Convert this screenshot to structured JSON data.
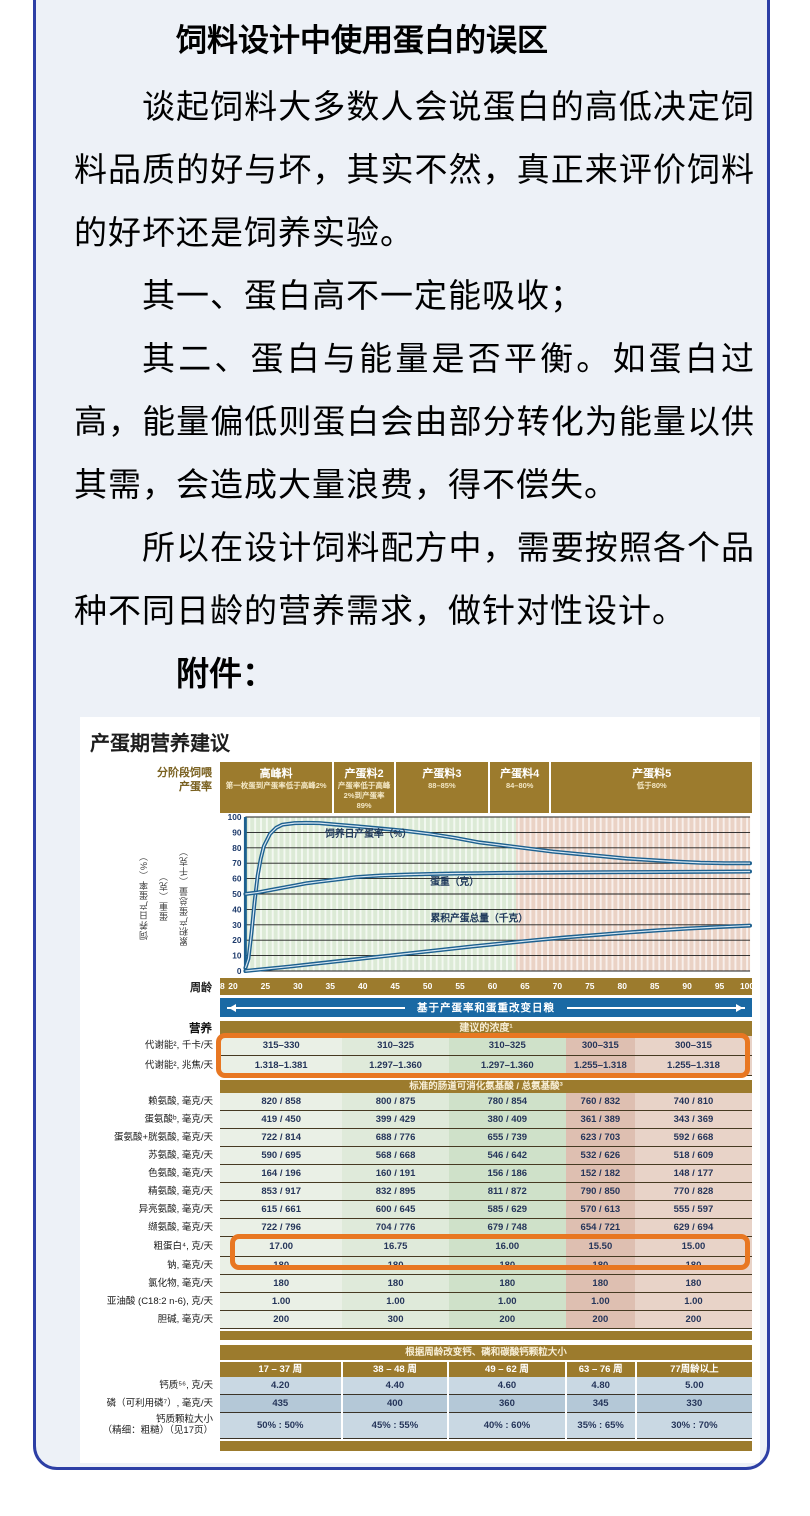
{
  "document": {
    "title": "饲料设计中使用蛋白的误区",
    "paragraphs": [
      "谈起饲料大多数人会说蛋白的高低决定饲料品质的好与坏，其实不然，真正来评价饲料的好坏还是饲养实验。",
      "其一、蛋白高不一定能吸收；",
      "其二、蛋白与能量是否平衡。如蛋白过高，能量偏低则蛋白会由部分转化为能量以供其需，会造成大量浪费，得不偿失。",
      "所以在设计饲料配方中，需要按照各个品种不同日龄的营养需求，做针对性设计。"
    ],
    "attachment_label": "附件："
  },
  "colors": {
    "card_bg": "#edf1f7",
    "card_border": "#2d3fa5",
    "brown": "#9c7b2d",
    "banner_blue": "#1a69a4",
    "curve_blue": "#1d608f",
    "highlight_orange": "#e87722",
    "green_zone": "#dcead6",
    "pink_zone": "#ead2c5"
  },
  "chart_data": {
    "type": "line",
    "title": "产蛋期营养建议",
    "phase_label_lines": [
      "分阶段饲喂",
      "产蛋率"
    ],
    "phases": [
      {
        "name": "高峰料",
        "range": "第一枚蛋到产蛋率低于高峰2%",
        "width_pct": 21.5
      },
      {
        "name": "产蛋料2",
        "range": "产蛋率低于高峰2%到产蛋率89%",
        "width_pct": 11
      },
      {
        "name": "产蛋料3",
        "range": "88–85%",
        "width_pct": 17.5
      },
      {
        "name": "产蛋料4",
        "range": "84–80%",
        "width_pct": 11
      },
      {
        "name": "产蛋料5",
        "range": "低于80%",
        "width_pct": 39
      }
    ],
    "y_axis_label_lines": [
      "饲养日产蛋率（%）",
      "蛋重（克）",
      "累积产蛋总量（千克）"
    ],
    "x_label": "周龄",
    "x_range": [
      18,
      100
    ],
    "x_ticks": [
      18,
      20,
      25,
      30,
      35,
      40,
      45,
      50,
      55,
      60,
      65,
      70,
      75,
      80,
      85,
      90,
      95,
      100
    ],
    "y_range": [
      0,
      100
    ],
    "y_ticks": [
      0,
      10,
      20,
      30,
      40,
      50,
      60,
      70,
      80,
      90,
      100
    ],
    "zone_split_week": 62,
    "grid": true,
    "banner": "基于产蛋率和蛋重改变日粮",
    "series": [
      {
        "name": "饲养日产蛋率（%）",
        "label_at": [
          38,
          87
        ],
        "points": [
          [
            18,
            2
          ],
          [
            18.5,
            8
          ],
          [
            19,
            25
          ],
          [
            19.5,
            45
          ],
          [
            20,
            62
          ],
          [
            20.5,
            73
          ],
          [
            21,
            81
          ],
          [
            22,
            89
          ],
          [
            23,
            93
          ],
          [
            24,
            95
          ],
          [
            26,
            96
          ],
          [
            28,
            96.2
          ],
          [
            30,
            96
          ],
          [
            33,
            95
          ],
          [
            36,
            94
          ],
          [
            40,
            92.5
          ],
          [
            44,
            91
          ],
          [
            48,
            89
          ],
          [
            52,
            86.5
          ],
          [
            56,
            83.5
          ],
          [
            60,
            81.5
          ],
          [
            64,
            79.5
          ],
          [
            68,
            77.5
          ],
          [
            72,
            76
          ],
          [
            76,
            74.5
          ],
          [
            80,
            73
          ],
          [
            84,
            72
          ],
          [
            88,
            71
          ],
          [
            92,
            70.3
          ],
          [
            96,
            70
          ],
          [
            100,
            70
          ]
        ]
      },
      {
        "name": "蛋重（克）",
        "label_at": [
          52,
          56
        ],
        "points": [
          [
            18,
            50
          ],
          [
            20,
            51
          ],
          [
            22,
            52.5
          ],
          [
            24,
            54
          ],
          [
            26,
            55.5
          ],
          [
            28,
            57
          ],
          [
            30,
            58
          ],
          [
            33,
            59.5
          ],
          [
            36,
            61
          ],
          [
            40,
            62
          ],
          [
            44,
            62.6
          ],
          [
            48,
            63
          ],
          [
            52,
            63.3
          ],
          [
            56,
            63.5
          ],
          [
            60,
            63.7
          ],
          [
            70,
            64
          ],
          [
            80,
            64.2
          ],
          [
            90,
            64.4
          ],
          [
            100,
            64.6
          ]
        ]
      },
      {
        "name": "累积产蛋总量（千克）",
        "label_at": [
          56,
          32
        ],
        "points": [
          [
            18,
            0
          ],
          [
            20,
            0.8
          ],
          [
            25,
            2.8
          ],
          [
            30,
            5
          ],
          [
            35,
            7.2
          ],
          [
            40,
            9.4
          ],
          [
            45,
            11.6
          ],
          [
            50,
            13.8
          ],
          [
            55,
            16
          ],
          [
            60,
            18
          ],
          [
            65,
            20
          ],
          [
            70,
            21.8
          ],
          [
            75,
            23.4
          ],
          [
            80,
            25
          ],
          [
            85,
            26.4
          ],
          [
            90,
            27.6
          ],
          [
            95,
            28.6
          ],
          [
            100,
            29.5
          ]
        ]
      }
    ]
  },
  "nutrition_table": {
    "section_label": "营养",
    "header": "建议的浓度¹",
    "column_widths_pct": [
      23,
      20,
      22,
      13,
      22
    ],
    "column_colors": [
      "#eaf0e6",
      "#dfeada",
      "#cfe1c9",
      "#debfb1",
      "#e8d3c8"
    ],
    "energy_rows": [
      {
        "label": "代谢能², 千卡/天",
        "values": [
          "315–330",
          "310–325",
          "310–325",
          "300–315",
          "300–315"
        ]
      },
      {
        "label": "代谢能², 兆焦/天",
        "values": [
          "1.318–1.381",
          "1.297–1.360",
          "1.297–1.360",
          "1.255–1.318",
          "1.255–1.318"
        ]
      }
    ],
    "amino_header": "标准的肠道可消化氨基酸 / 总氨基酸³",
    "amino_rows": [
      {
        "label": "赖氨酸, 毫克/天",
        "values": [
          "820 / 858",
          "800 / 875",
          "780 / 854",
          "760 / 832",
          "740 / 810"
        ]
      },
      {
        "label": "蛋氨酸ᵇ, 毫克/天",
        "values": [
          "419 / 450",
          "399 / 429",
          "380 / 409",
          "361 / 389",
          "343 / 369"
        ]
      },
      {
        "label": "蛋氨酸+胱氨酸, 毫克/天",
        "values": [
          "722 / 814",
          "688 / 776",
          "655 / 739",
          "623 / 703",
          "592 / 668"
        ]
      },
      {
        "label": "苏氨酸, 毫克/天",
        "values": [
          "590 / 695",
          "568 / 668",
          "546 / 642",
          "532 / 626",
          "518 / 609"
        ]
      },
      {
        "label": "色氨酸, 毫克/天",
        "values": [
          "164 / 196",
          "160 / 191",
          "156 / 186",
          "152 / 182",
          "148 / 177"
        ]
      },
      {
        "label": "精氨酸, 毫克/天",
        "values": [
          "853 / 917",
          "832 / 895",
          "811 / 872",
          "790 / 850",
          "770 / 828"
        ]
      },
      {
        "label": "异亮氨酸, 毫克/天",
        "values": [
          "615 / 661",
          "600 / 645",
          "585 / 629",
          "570 / 613",
          "555 / 597"
        ]
      },
      {
        "label": "缬氨酸, 毫克/天",
        "values": [
          "722 / 796",
          "704 / 776",
          "679 / 748",
          "654 / 721",
          "629 / 694"
        ]
      }
    ],
    "protein_row": {
      "label": "粗蛋白⁴, 克/天",
      "values": [
        "17.00",
        "16.75",
        "16.00",
        "15.50",
        "15.00"
      ]
    },
    "mineral_rows": [
      {
        "label": "钠, 毫克/天",
        "values": [
          "180",
          "180",
          "180",
          "180",
          "180"
        ]
      },
      {
        "label": "氯化物, 毫克/天",
        "values": [
          "180",
          "180",
          "180",
          "180",
          "180"
        ]
      },
      {
        "label": "亚油酸 (C18:2 n-6), 克/天",
        "values": [
          "1.00",
          "1.00",
          "1.00",
          "1.00",
          "1.00"
        ]
      },
      {
        "label": "胆碱, 毫克/天",
        "values": [
          "200",
          "300",
          "200",
          "200",
          "200"
        ]
      }
    ]
  },
  "calcium_table": {
    "header": "根据周龄改变钙、磷和碳酸钙颗粒大小",
    "columns": [
      "17 – 37 周",
      "38 – 48 周",
      "49 – 62 周",
      "63 – 76 周",
      "77周龄以上"
    ],
    "row_colors": [
      "#c9d8e3",
      "#b4c8d7",
      "#c9d8e3"
    ],
    "rows": [
      {
        "label": "钙质⁵⁶, 克/天",
        "values": [
          "4.20",
          "4.40",
          "4.60",
          "4.80",
          "5.00"
        ]
      },
      {
        "label": "磷（可利用磷⁷）, 毫克/天",
        "values": [
          "435",
          "400",
          "360",
          "345",
          "330"
        ]
      },
      {
        "label": "钙质颗粒大小\n（精细：粗糙）（见17页）",
        "values": [
          "50% : 50%",
          "45% : 55%",
          "40% : 60%",
          "35% : 65%",
          "30% : 70%"
        ]
      }
    ]
  }
}
